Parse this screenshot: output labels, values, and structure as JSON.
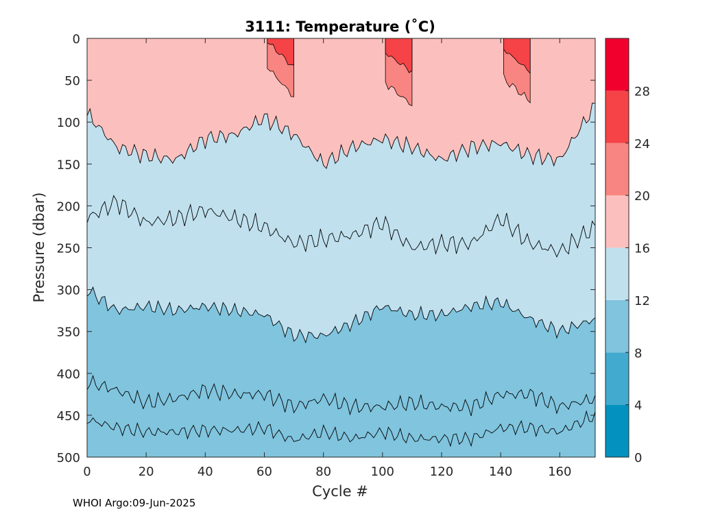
{
  "chart_data": {
    "type": "heatmap",
    "subtype": "filled-contour",
    "title": "3111:  Temperature (˚C)",
    "xlabel": "Cycle #",
    "ylabel": "Pressure (dbar)",
    "xlim": [
      0,
      172
    ],
    "ylim": [
      500,
      0
    ],
    "y_reversed": true,
    "x_ticks": [
      "0",
      "20",
      "40",
      "60",
      "80",
      "100",
      "120",
      "140",
      "160"
    ],
    "y_ticks": [
      "0",
      "50",
      "100",
      "150",
      "200",
      "250",
      "300",
      "350",
      "400",
      "450",
      "500"
    ],
    "colorbar": {
      "levels": [
        0,
        4,
        8,
        12,
        16,
        20,
        24,
        28,
        32
      ],
      "tick_labels": [
        "0",
        "4",
        "8",
        "12",
        "16",
        "20",
        "24",
        "28"
      ],
      "colors": [
        "#0392C0",
        "#42AACF",
        "#80C4DE",
        "#C0E0EE",
        "#FBC0BD",
        "#F88581",
        "#F54347",
        "#F2002D"
      ]
    },
    "isotherm_depths": {
      "cycles": [
        0,
        10,
        20,
        30,
        40,
        50,
        60,
        70,
        80,
        90,
        100,
        110,
        120,
        130,
        140,
        150,
        160,
        172
      ],
      "t8": [
        455,
        465,
        470,
        470,
        468,
        468,
        465,
        480,
        470,
        478,
        470,
        478,
        478,
        478,
        465,
        465,
        470,
        450
      ],
      "t10": [
        410,
        420,
        435,
        430,
        420,
        425,
        425,
        440,
        430,
        440,
        440,
        435,
        440,
        440,
        425,
        425,
        440,
        430
      ],
      "t12": [
        300,
        325,
        320,
        325,
        320,
        325,
        330,
        355,
        355,
        340,
        320,
        330,
        330,
        320,
        315,
        335,
        350,
        335
      ],
      "t14": [
        215,
        195,
        220,
        215,
        205,
        215,
        225,
        245,
        240,
        235,
        220,
        250,
        245,
        245,
        215,
        245,
        255,
        225
      ],
      "t16": [
        90,
        130,
        140,
        145,
        120,
        115,
        95,
        115,
        150,
        130,
        120,
        130,
        145,
        130,
        125,
        140,
        145,
        80
      ],
      "t20": [
        null,
        null,
        null,
        null,
        null,
        null,
        30,
        70,
        null,
        null,
        50,
        80,
        null,
        null,
        45,
        75,
        null,
        null
      ],
      "t24": [
        null,
        null,
        null,
        null,
        null,
        null,
        0,
        35,
        null,
        null,
        15,
        40,
        null,
        null,
        10,
        40,
        null,
        null
      ]
    },
    "grid": false,
    "legend": "colorbar-right"
  },
  "footer": "WHOI Argo:09-Jun-2025"
}
